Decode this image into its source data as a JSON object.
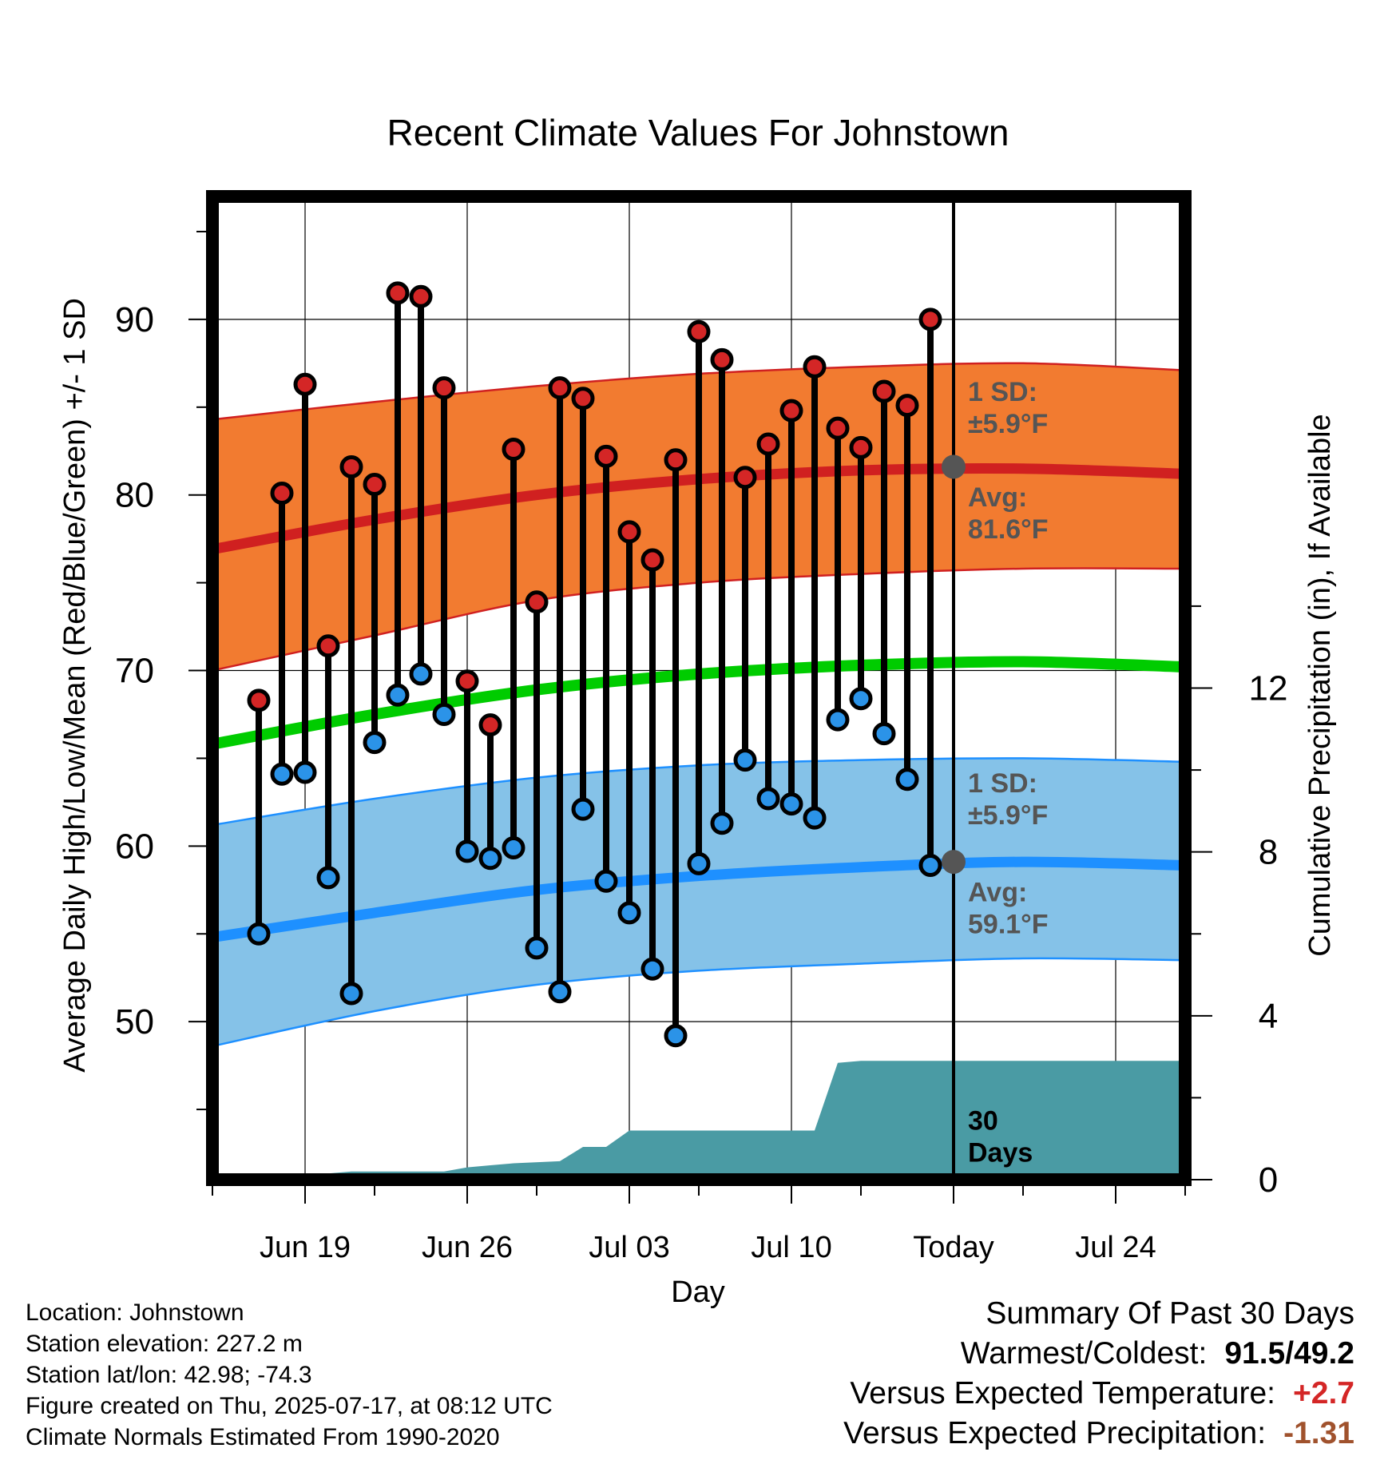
{
  "chart_data": {
    "type": "line",
    "title": "Recent Climate Values For Johnstown",
    "xlabel": "Day",
    "ylabel": "Average Daily High/Low/Mean (Red/Blue/Green) +/- 1 SD",
    "y2label": "Cumulative Precipitation (in), If Available",
    "ylim": [
      41,
      97
    ],
    "y2lim": [
      0,
      24
    ],
    "yticks": [
      50,
      60,
      70,
      80,
      90
    ],
    "y2ticks": [
      0,
      4,
      8,
      12
    ],
    "xlim": [
      "2025-06-15",
      "2025-07-27"
    ],
    "xticks": [
      {
        "date": "2025-06-19",
        "label": "Jun 19"
      },
      {
        "date": "2025-06-26",
        "label": "Jun 26"
      },
      {
        "date": "2025-07-03",
        "label": "Jul 03"
      },
      {
        "date": "2025-07-10",
        "label": "Jul 10"
      },
      {
        "date": "2025-07-17",
        "label": "Today"
      },
      {
        "date": "2025-07-24",
        "label": "Jul 24"
      }
    ],
    "today": "2025-07-17",
    "grid": true,
    "colors": {
      "high_band": "#f27b30",
      "high_line": "#d02020",
      "low_band": "#85c2e8",
      "low_line": "#1e90ff",
      "mean_line": "#00cc00",
      "precip": "#4a9ba4",
      "high_dot": "#d42626",
      "low_dot": "#2b93e8",
      "avg_marker": "#555555"
    },
    "normals": {
      "dates": [
        "2025-06-15",
        "2025-06-22",
        "2025-06-29",
        "2025-07-06",
        "2025-07-13",
        "2025-07-20",
        "2025-07-27"
      ],
      "high_avg": [
        76.9,
        78.6,
        80.0,
        80.9,
        81.4,
        81.5,
        81.2
      ],
      "high_upper": [
        84.3,
        85.3,
        86.2,
        86.9,
        87.3,
        87.5,
        87.1
      ],
      "high_lower": [
        70.0,
        72.0,
        74.0,
        75.0,
        75.5,
        75.8,
        75.8
      ],
      "low_avg": [
        54.8,
        56.2,
        57.5,
        58.3,
        58.8,
        59.1,
        58.9
      ],
      "low_upper": [
        61.2,
        62.7,
        63.9,
        64.6,
        64.9,
        65.0,
        64.8
      ],
      "low_lower": [
        48.6,
        50.6,
        52.1,
        52.9,
        53.3,
        53.6,
        53.5
      ],
      "mean_avg": [
        65.8,
        67.5,
        68.9,
        69.8,
        70.3,
        70.5,
        70.2
      ]
    },
    "series": [
      {
        "dates": [
          "2025-06-17",
          "2025-06-18",
          "2025-06-19",
          "2025-06-20",
          "2025-06-21",
          "2025-06-22",
          "2025-06-23",
          "2025-06-24",
          "2025-06-25",
          "2025-06-26",
          "2025-06-27",
          "2025-06-28",
          "2025-06-29",
          "2025-06-30",
          "2025-07-01",
          "2025-07-02",
          "2025-07-03",
          "2025-07-04",
          "2025-07-05",
          "2025-07-06",
          "2025-07-07",
          "2025-07-08",
          "2025-07-09",
          "2025-07-10",
          "2025-07-11",
          "2025-07-12",
          "2025-07-13",
          "2025-07-14",
          "2025-07-15",
          "2025-07-16"
        ],
        "high": [
          68.3,
          80.1,
          86.3,
          71.4,
          81.6,
          80.6,
          91.5,
          91.3,
          86.1,
          69.4,
          66.9,
          82.6,
          73.9,
          86.1,
          85.5,
          82.2,
          77.9,
          76.3,
          82.0,
          89.3,
          87.7,
          81.0,
          82.9,
          84.8,
          87.3,
          83.8,
          82.7,
          85.9,
          85.1,
          90.0
        ],
        "low": [
          55.0,
          64.1,
          64.2,
          58.2,
          51.6,
          65.9,
          68.6,
          69.8,
          67.5,
          59.7,
          59.3,
          59.9,
          54.2,
          51.7,
          62.1,
          58.0,
          56.2,
          53.0,
          49.2,
          59.0,
          61.3,
          64.9,
          62.7,
          62.4,
          61.6,
          67.2,
          68.4,
          66.4,
          63.8,
          58.9
        ]
      }
    ],
    "precip": {
      "dates": [
        "2025-06-15",
        "2025-06-17",
        "2025-06-18",
        "2025-06-20",
        "2025-06-21",
        "2025-06-22",
        "2025-06-25",
        "2025-06-26",
        "2025-06-27",
        "2025-06-28",
        "2025-06-30",
        "2025-07-01",
        "2025-07-02",
        "2025-07-03",
        "2025-07-10",
        "2025-07-11",
        "2025-07-12",
        "2025-07-13",
        "2025-07-27"
      ],
      "values": [
        0.0,
        0.0,
        0.15,
        0.15,
        0.2,
        0.2,
        0.2,
        0.3,
        0.35,
        0.4,
        0.45,
        0.8,
        0.8,
        1.2,
        1.2,
        1.2,
        2.85,
        2.9,
        2.9
      ]
    },
    "annotations": {
      "high_sd": [
        "1 SD:",
        "±5.9°F"
      ],
      "high_avg": [
        "Avg:",
        "81.6°F"
      ],
      "low_sd": [
        "1 SD:",
        "±5.9°F"
      ],
      "low_avg": [
        "Avg:",
        "59.1°F"
      ],
      "days": [
        "30",
        "Days"
      ]
    },
    "today_high_avg": 81.6,
    "today_low_avg": 59.1
  },
  "info": {
    "location": "Location: Johnstown",
    "elevation": "Station elevation: 227.2 m",
    "latlon": "Station lat/lon: 42.98; -74.3",
    "created": "Figure created on Thu, 2025-07-17, at 08:12 UTC",
    "normals": "Climate Normals Estimated From 1990-2020"
  },
  "summary": {
    "title": "Summary Of Past 30 Days",
    "warmest_label": "Warmest/Coldest:",
    "warmest_value": "91.5/49.2",
    "temp_label": "Versus Expected Temperature:",
    "temp_value": "+2.7",
    "temp_color": "#d42626",
    "precip_label": "Versus Expected Precipitation:",
    "precip_value": "-1.31",
    "precip_color": "#a0522d"
  }
}
